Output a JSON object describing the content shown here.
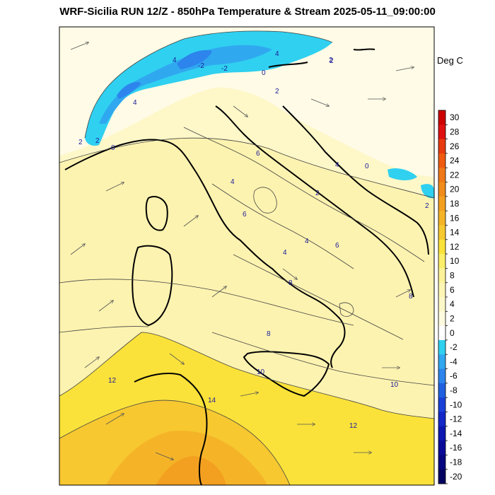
{
  "title": "WRF-Sicilia RUN 12/Z - 850hPa Temperature & Stream 2025-05-11_09:00:00",
  "colorbar": {
    "unit": "Deg C",
    "labels": [
      "30",
      "28",
      "26",
      "24",
      "22",
      "20",
      "18",
      "16",
      "14",
      "12",
      "10",
      "8",
      "6",
      "4",
      "2",
      "0",
      "-2",
      "-4",
      "-6",
      "-8",
      "-10",
      "-12",
      "-14",
      "-16",
      "-18",
      "-20"
    ],
    "colors": [
      "#cc0000",
      "#e01010",
      "#e83a10",
      "#ef5a10",
      "#f07818",
      "#f08c1c",
      "#f3a020",
      "#f5b428",
      "#f7c830",
      "#fae23a",
      "#fbee6a",
      "#fcf29a",
      "#fdf5b4",
      "#fef8c8",
      "#fffbe0",
      "#ffffff",
      "#30d0f0",
      "#30a8f0",
      "#2c84ec",
      "#2060e0",
      "#1a40d8",
      "#1428c8",
      "#0c18b0",
      "#0a0a98",
      "#060680",
      "#040460"
    ]
  },
  "contour_labels": [
    "4",
    "4",
    "2",
    "4",
    "2",
    "0",
    "2",
    "2",
    "0",
    "-2",
    "2",
    "-2",
    "4",
    "6",
    "0",
    "2",
    "4",
    "4",
    "6",
    "4",
    "6",
    "8",
    "8",
    "8",
    "10",
    "12",
    "14",
    "12",
    "10",
    "2"
  ],
  "colors": {
    "land_base": "#fdf3b0",
    "warm_zone": "#fae23a",
    "hot_zone": "#f5b428",
    "hottest_zone": "#f0901e",
    "cold_zone": "#ffffff",
    "cold_blue": "#30c0f0",
    "deep_blue": "#2c84ec"
  }
}
